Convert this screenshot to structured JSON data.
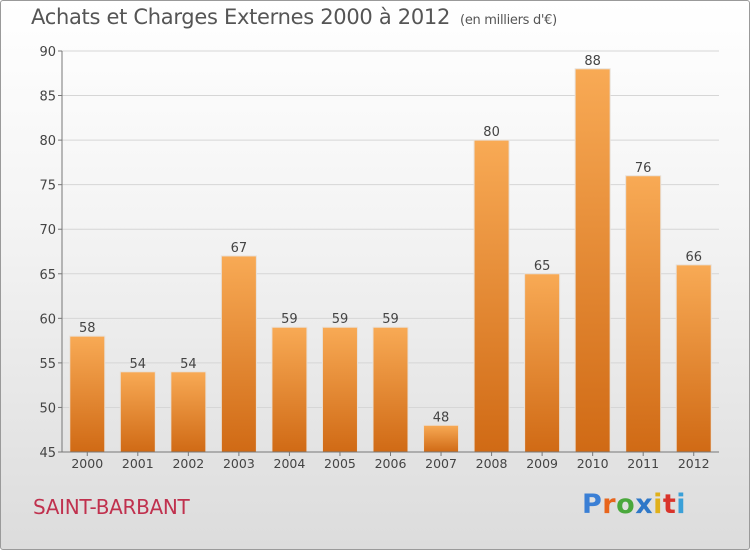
{
  "title": "Achats et Charges Externes 2000 à 2012",
  "unit": "(en milliers d'€)",
  "commune": "SAINT-BARBANT",
  "logo": {
    "text": "Proxiti",
    "colors": [
      "#3a7fd5",
      "#e8651c",
      "#4aa83c",
      "#2f78c8",
      "#e0b01a",
      "#d9342b",
      "#3aa0d8"
    ]
  },
  "colors": {
    "bar_light": "#f8aa55",
    "bar_dark": "#d06a15",
    "commune": "#c0314e"
  },
  "chart_data": {
    "type": "bar",
    "categories": [
      "2000",
      "2001",
      "2002",
      "2003",
      "2004",
      "2005",
      "2006",
      "2007",
      "2008",
      "2009",
      "2010",
      "2011",
      "2012"
    ],
    "values": [
      58,
      54,
      54,
      67,
      59,
      59,
      59,
      48,
      80,
      65,
      88,
      76,
      66
    ],
    "ylim": [
      45,
      90
    ],
    "yticks": [
      45,
      50,
      55,
      60,
      65,
      70,
      75,
      80,
      85,
      90
    ],
    "grid": true,
    "title": "Achats et Charges Externes 2000 à 2012",
    "xlabel": "",
    "ylabel": ""
  }
}
